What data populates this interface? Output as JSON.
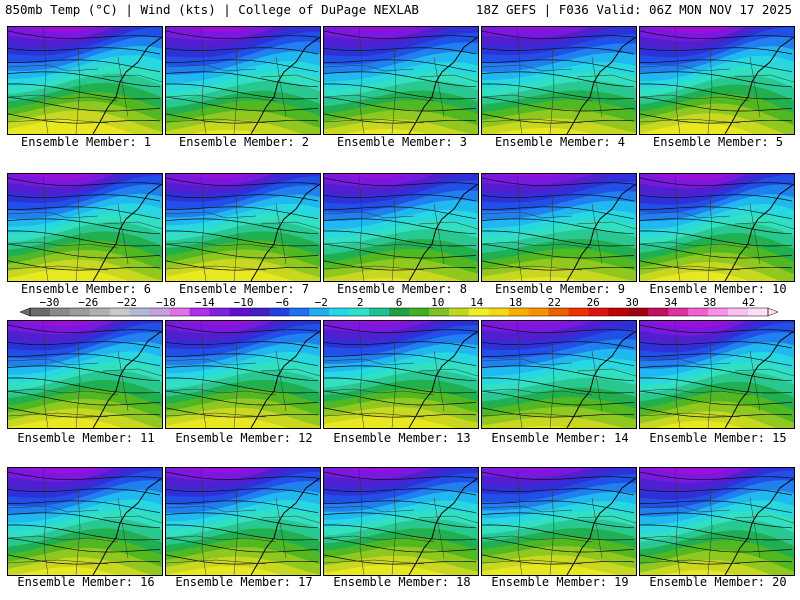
{
  "header": {
    "left": "850mb Temp (°C) | Wind (kts) | College of DuPage NEXLAB",
    "right": "18Z GEFS | F036 Valid: 06Z MON NOV 17 2025"
  },
  "panels": [
    {
      "label": "Ensemble Member: 1",
      "member": 1
    },
    {
      "label": "Ensemble Member: 2",
      "member": 2
    },
    {
      "label": "Ensemble Member: 3",
      "member": 3
    },
    {
      "label": "Ensemble Member: 4",
      "member": 4
    },
    {
      "label": "Ensemble Member: 5",
      "member": 5
    },
    {
      "label": "Ensemble Member: 6",
      "member": 6
    },
    {
      "label": "Ensemble Member: 7",
      "member": 7
    },
    {
      "label": "Ensemble Member: 8",
      "member": 8
    },
    {
      "label": "Ensemble Member: 9",
      "member": 9
    },
    {
      "label": "Ensemble Member: 10",
      "member": 10
    },
    {
      "label": "Ensemble Member: 11",
      "member": 11
    },
    {
      "label": "Ensemble Member: 12",
      "member": 12
    },
    {
      "label": "Ensemble Member: 13",
      "member": 13
    },
    {
      "label": "Ensemble Member: 14",
      "member": 14
    },
    {
      "label": "Ensemble Member: 15",
      "member": 15
    },
    {
      "label": "Ensemble Member: 16",
      "member": 16
    },
    {
      "label": "Ensemble Member: 17",
      "member": 17
    },
    {
      "label": "Ensemble Member: 18",
      "member": 18
    },
    {
      "label": "Ensemble Member: 19",
      "member": 19
    },
    {
      "label": "Ensemble Member: 20",
      "member": 20
    }
  ],
  "colorbar": {
    "min": -32,
    "max": 44,
    "tick_labels": [
      "−30",
      "−26",
      "−22",
      "−18",
      "−14",
      "−10",
      "−6",
      "−2",
      "2",
      "6",
      "10",
      "14",
      "18",
      "22",
      "26",
      "30",
      "34",
      "38",
      "42"
    ],
    "tick_values": [
      -30,
      -26,
      -22,
      -18,
      -14,
      -10,
      -6,
      -2,
      2,
      6,
      10,
      14,
      18,
      22,
      26,
      30,
      34,
      38,
      42
    ],
    "colors": [
      "#6b6b6b",
      "#8a8a8a",
      "#9c9c9c",
      "#b0b0b0",
      "#c8c8c8",
      "#b0b8d8",
      "#c8a0e0",
      "#e070e8",
      "#b030e8",
      "#8020e0",
      "#6010d0",
      "#4020c0",
      "#2040e0",
      "#2070f0",
      "#20b0f0",
      "#20d8e8",
      "#30e0c8",
      "#20c090",
      "#20a040",
      "#40b020",
      "#80c020",
      "#c0d820",
      "#f0f020",
      "#f8d810",
      "#f8b000",
      "#f89000",
      "#f06000",
      "#f03000",
      "#e01010",
      "#c00000",
      "#a00010",
      "#c01060",
      "#e030a0",
      "#f060d0",
      "#f890e8",
      "#fcc0f0",
      "#fde0f8"
    ]
  }
}
